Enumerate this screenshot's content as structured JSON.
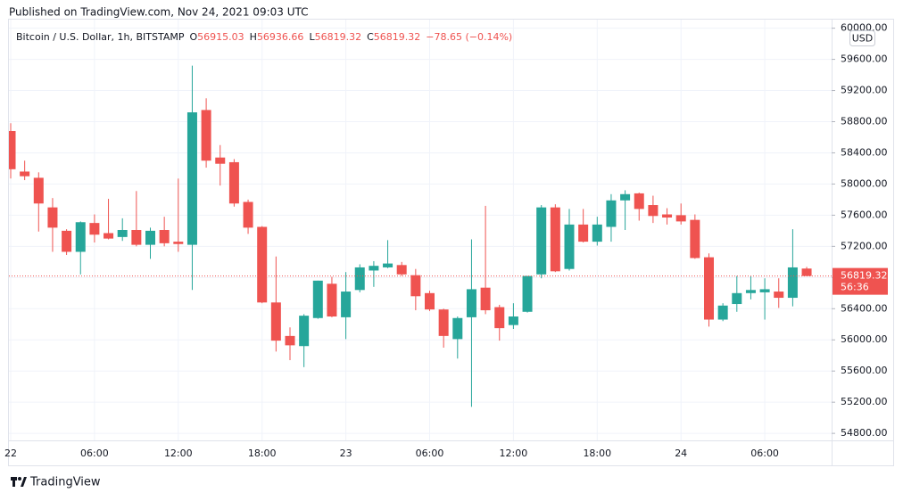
{
  "header": {
    "published": "Published on TradingView.com, Nov 24, 2021 09:03 UTC"
  },
  "footer": {
    "brand": "TradingView"
  },
  "chart_data": {
    "type": "candlestick",
    "legend": {
      "symbol": "Bitcoin / U.S. Dollar, 1h, BITSTAMP",
      "labels": [
        "O",
        "H",
        "L",
        "C"
      ],
      "change": "−78.65 (−0.14%)"
    },
    "currency": "USD",
    "countdown": "56:36",
    "up_color": "#26a69a",
    "down_color": "#ef5350",
    "grid": true,
    "categories": [
      "22",
      null,
      null,
      null,
      null,
      null,
      "06:00",
      null,
      null,
      null,
      null,
      null,
      "12:00",
      null,
      null,
      null,
      null,
      null,
      "18:00",
      null,
      null,
      null,
      null,
      null,
      "23",
      null,
      null,
      null,
      null,
      null,
      "06:00",
      null,
      null,
      null,
      null,
      null,
      "12:00",
      null,
      null,
      null,
      null,
      null,
      "18:00",
      null,
      null,
      null,
      null,
      null,
      "24",
      null,
      null,
      null,
      null,
      null,
      "06:00",
      null,
      null,
      null
    ],
    "open": [
      58680,
      58160,
      58080,
      57700,
      57400,
      57130,
      57500,
      57370,
      57320,
      57410,
      57220,
      57410,
      57260,
      57220,
      58950,
      58340,
      58280,
      57770,
      57450,
      56480,
      56050,
      55920,
      56280,
      56720,
      56290,
      56640,
      56890,
      56930,
      56960,
      56830,
      56600,
      56390,
      56010,
      56290,
      56670,
      56420,
      56190,
      56360,
      56840,
      57700,
      56910,
      57480,
      57260,
      57450,
      57790,
      57880,
      57730,
      57610,
      57600,
      57540,
      57060,
      56260,
      56460,
      56600,
      56610,
      56620,
      56540,
      56915.03
    ],
    "high": [
      58780,
      58300,
      58150,
      57820,
      57420,
      57520,
      57610,
      57810,
      57560,
      57910,
      57440,
      57580,
      58070,
      59520,
      59100,
      58500,
      58320,
      57800,
      57460,
      57070,
      56160,
      56330,
      56760,
      56810,
      56870,
      56970,
      57010,
      57280,
      57000,
      56910,
      56630,
      56400,
      56300,
      57290,
      57720,
      56450,
      56470,
      56820,
      57730,
      57740,
      57680,
      57680,
      57580,
      57870,
      57920,
      57890,
      57850,
      57690,
      57750,
      57610,
      57110,
      56470,
      56820,
      56820,
      56790,
      56790,
      57420,
      56936.66
    ],
    "low": [
      58070,
      58050,
      57390,
      57130,
      57090,
      56840,
      57250,
      57290,
      57270,
      57200,
      57040,
      57200,
      57130,
      56640,
      58210,
      57980,
      57710,
      57360,
      56470,
      55850,
      55740,
      55650,
      56270,
      56290,
      56010,
      56610,
      56680,
      56920,
      56820,
      56380,
      56370,
      55900,
      55760,
      55140,
      56330,
      55990,
      56140,
      56350,
      56790,
      56870,
      56890,
      57250,
      57210,
      57260,
      57410,
      57530,
      57500,
      57480,
      57480,
      57040,
      56170,
      56240,
      56360,
      56520,
      56260,
      56410,
      56430,
      56819.32
    ],
    "close": [
      58190,
      58100,
      57750,
      57440,
      57130,
      57510,
      57350,
      57300,
      57410,
      57220,
      57400,
      57240,
      57230,
      58920,
      58300,
      58260,
      57750,
      57440,
      56480,
      55990,
      55930,
      56310,
      56760,
      56300,
      56620,
      56930,
      56950,
      56980,
      56840,
      56560,
      56390,
      56050,
      56280,
      56650,
      56380,
      56150,
      56300,
      56820,
      57700,
      56880,
      57480,
      57260,
      57480,
      57790,
      57870,
      57680,
      57590,
      57570,
      57520,
      57050,
      56260,
      56440,
      56600,
      56640,
      56650,
      56540,
      56930,
      56819.32
    ],
    "ylim": [
      54710,
      60110
    ],
    "yticks": [
      {
        "value": 54800,
        "label": "54800.00"
      },
      {
        "value": 55200,
        "label": "55200.00"
      },
      {
        "value": 55600,
        "label": "55600.00"
      },
      {
        "value": 56000,
        "label": "56000.00"
      },
      {
        "value": 56400,
        "label": "56400.00"
      },
      {
        "value": 56800,
        "label": "56800.00"
      },
      {
        "value": 57200,
        "label": "57200.00"
      },
      {
        "value": 57600,
        "label": "57600.00"
      },
      {
        "value": 58000,
        "label": "58000.00"
      },
      {
        "value": 58400,
        "label": "58400.00"
      },
      {
        "value": 58800,
        "label": "58800.00"
      },
      {
        "value": 59200,
        "label": "59200.00"
      },
      {
        "value": 59600,
        "label": "59600.00"
      },
      {
        "value": 60000,
        "label": "60000.00"
      }
    ]
  }
}
